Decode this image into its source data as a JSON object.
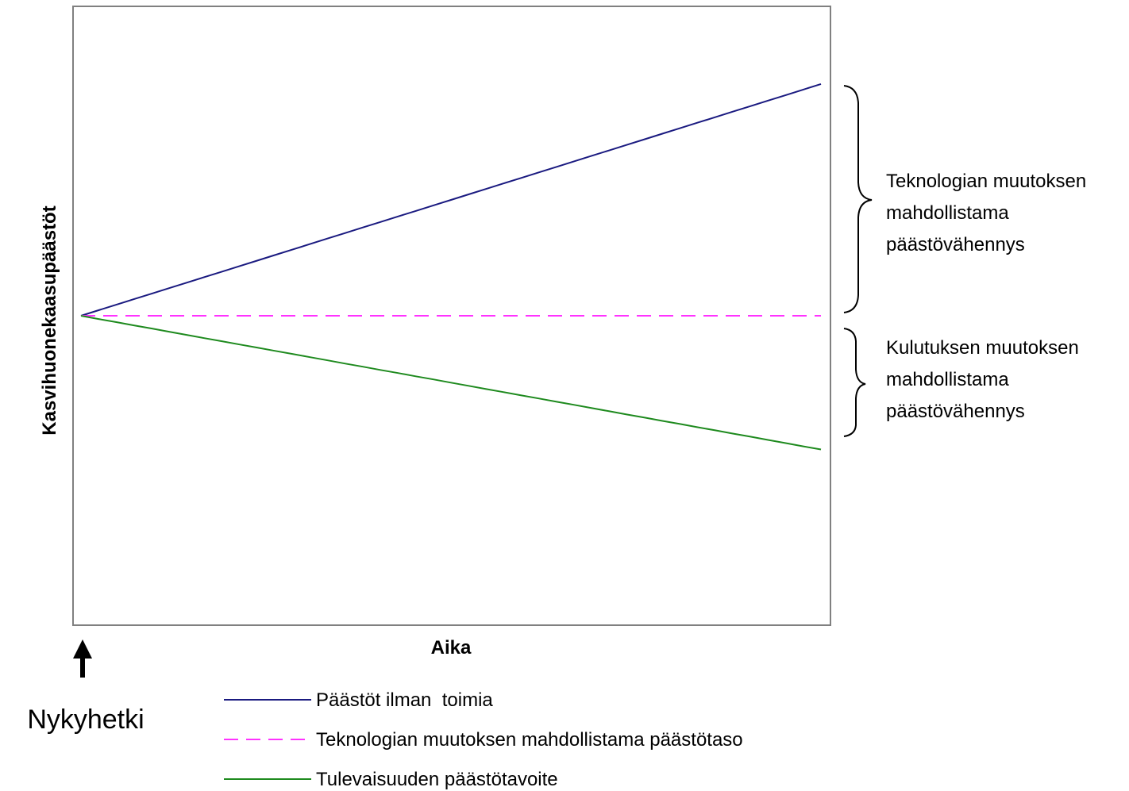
{
  "chart_data": {
    "type": "line",
    "title": "",
    "xlabel": "Aika",
    "ylabel": "Kasvihuonekaasupäästöt",
    "x_ticks": "none",
    "y_ticks": "none",
    "grid": false,
    "legend_placement": "bottom",
    "series": [
      {
        "name": "Päästöt ilman  toimia",
        "color": "#1a1a80",
        "dash": "solid",
        "values": [
          0,
          3.9,
          7.8,
          11.7,
          15.6,
          19.5,
          23.4,
          27.3,
          31.2,
          35.1,
          39.0,
          42.9,
          46.8,
          50.7,
          54.6,
          58.5,
          62.4,
          66.3,
          70.2,
          74.1,
          78.0,
          81.9,
          85.8,
          89.7,
          93.6,
          97.5,
          101.4,
          105.3,
          109.2,
          113.1,
          117.0,
          120.9,
          124.8,
          128.7,
          132.6,
          136.5,
          140.4,
          144.3,
          148.2,
          152.1,
          156.0,
          159.9,
          163.8
        ]
      },
      {
        "name": "Teknologian muutoksen mahdollistama päästötaso",
        "color": "#ff33ff",
        "dash": "dashed",
        "values": [
          0,
          0,
          0,
          0,
          0,
          0,
          0,
          0,
          0,
          0,
          0,
          0,
          0,
          0,
          0,
          0,
          0,
          0,
          0,
          0,
          0,
          0,
          0,
          0,
          0,
          0,
          0,
          0,
          0,
          0,
          0,
          0,
          0,
          0,
          0,
          0,
          0,
          0,
          0,
          0,
          0,
          0,
          0
        ]
      },
      {
        "name": "Tulevaisuuden päästötavoite",
        "color": "#1e8a1e",
        "dash": "solid",
        "values": [
          0,
          -2.3,
          -4.5,
          -6.8,
          -9.0,
          -11.3,
          -13.5,
          -15.8,
          -18.0,
          -20.3,
          -22.5,
          -24.8,
          -27.0,
          -29.3,
          -31.5,
          -33.8,
          -36.0,
          -38.3,
          -40.5,
          -42.8,
          -45.0,
          -47.3,
          -49.5,
          -51.8,
          -54.0,
          -56.3,
          -58.5,
          -60.8,
          -63.0,
          -65.3,
          -67.5,
          -69.8,
          -72.0,
          -74.3,
          -76.5,
          -78.8,
          -81.0,
          -83.3,
          -85.5,
          -87.8,
          -90.0,
          -92.3,
          -94.5
        ]
      }
    ],
    "annotations": [
      {
        "id": "tech",
        "lines": [
          "Teknologian muutoksen",
          "mahdollistama",
          "päästövähennys"
        ]
      },
      {
        "id": "kulutus",
        "lines": [
          "Kulutuksen muutoksen",
          "mahdollistama",
          "päästövähennys"
        ]
      }
    ],
    "marker_label": "Nykyhetki"
  }
}
